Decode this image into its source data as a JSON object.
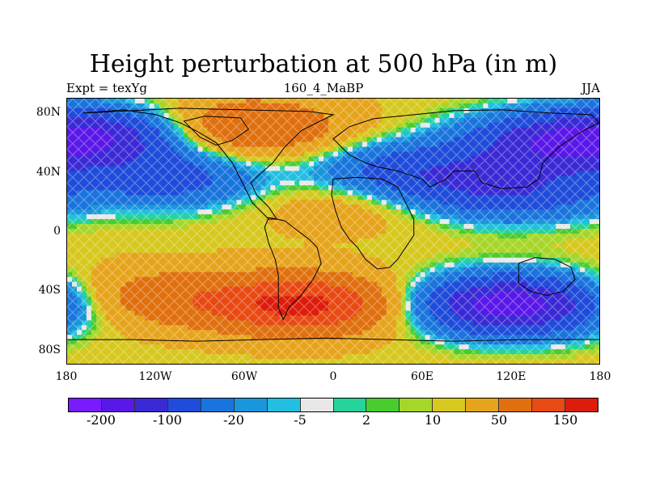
{
  "title": "Height perturbation at 500 hPa (in m)",
  "left_string": "Expt = texYg",
  "center_string": "160_4_MaBP",
  "right_string": "JJA",
  "x_ticks": [
    "180",
    "120W",
    "60W",
    "0",
    "60E",
    "120E",
    "180"
  ],
  "y_ticks": [
    "80N",
    "40N",
    "0",
    "40S",
    "80S"
  ],
  "colorbar": {
    "colors": [
      "#7a1aff",
      "#5a18e8",
      "#3a2ad6",
      "#1f4cda",
      "#1a74dd",
      "#1a96dc",
      "#22bfe0",
      "#e8e8e8",
      "#26d39a",
      "#49cc2e",
      "#a6d62a",
      "#d6c81e",
      "#e6a41c",
      "#e0700f",
      "#e84a14",
      "#dd1c0c"
    ],
    "labels": [
      "-200",
      "-100",
      "-20",
      "-5",
      "2",
      "10",
      "50",
      "150"
    ]
  },
  "chart_data": {
    "type": "heatmap",
    "title": "Height perturbation at 500 hPa (in m)",
    "x_range": [
      -180,
      180
    ],
    "y_range": [
      -90,
      90
    ],
    "x_ticks": [
      -180,
      -120,
      -60,
      0,
      60,
      120,
      180
    ],
    "y_ticks": [
      80,
      40,
      0,
      -40,
      -80
    ],
    "levels": [
      -200,
      -150,
      -100,
      -50,
      -20,
      -10,
      -5,
      -2,
      2,
      5,
      10,
      20,
      50,
      100,
      150,
      200
    ],
    "anomaly_centers": [
      {
        "lon": -155,
        "lat": 65,
        "value": -120
      },
      {
        "lon": -60,
        "lat": 70,
        "value": 90
      },
      {
        "lon": -110,
        "lat": 35,
        "value": -80
      },
      {
        "lon": 50,
        "lat": 40,
        "value": -90
      },
      {
        "lon": 120,
        "lat": 27,
        "value": -100
      },
      {
        "lon": 150,
        "lat": 60,
        "value": -130
      },
      {
        "lon": 10,
        "lat": 20,
        "value": 30
      },
      {
        "lon": -20,
        "lat": -50,
        "value": 150
      },
      {
        "lon": 120,
        "lat": -50,
        "value": -200
      },
      {
        "lon": -120,
        "lat": -45,
        "value": 60
      }
    ]
  }
}
